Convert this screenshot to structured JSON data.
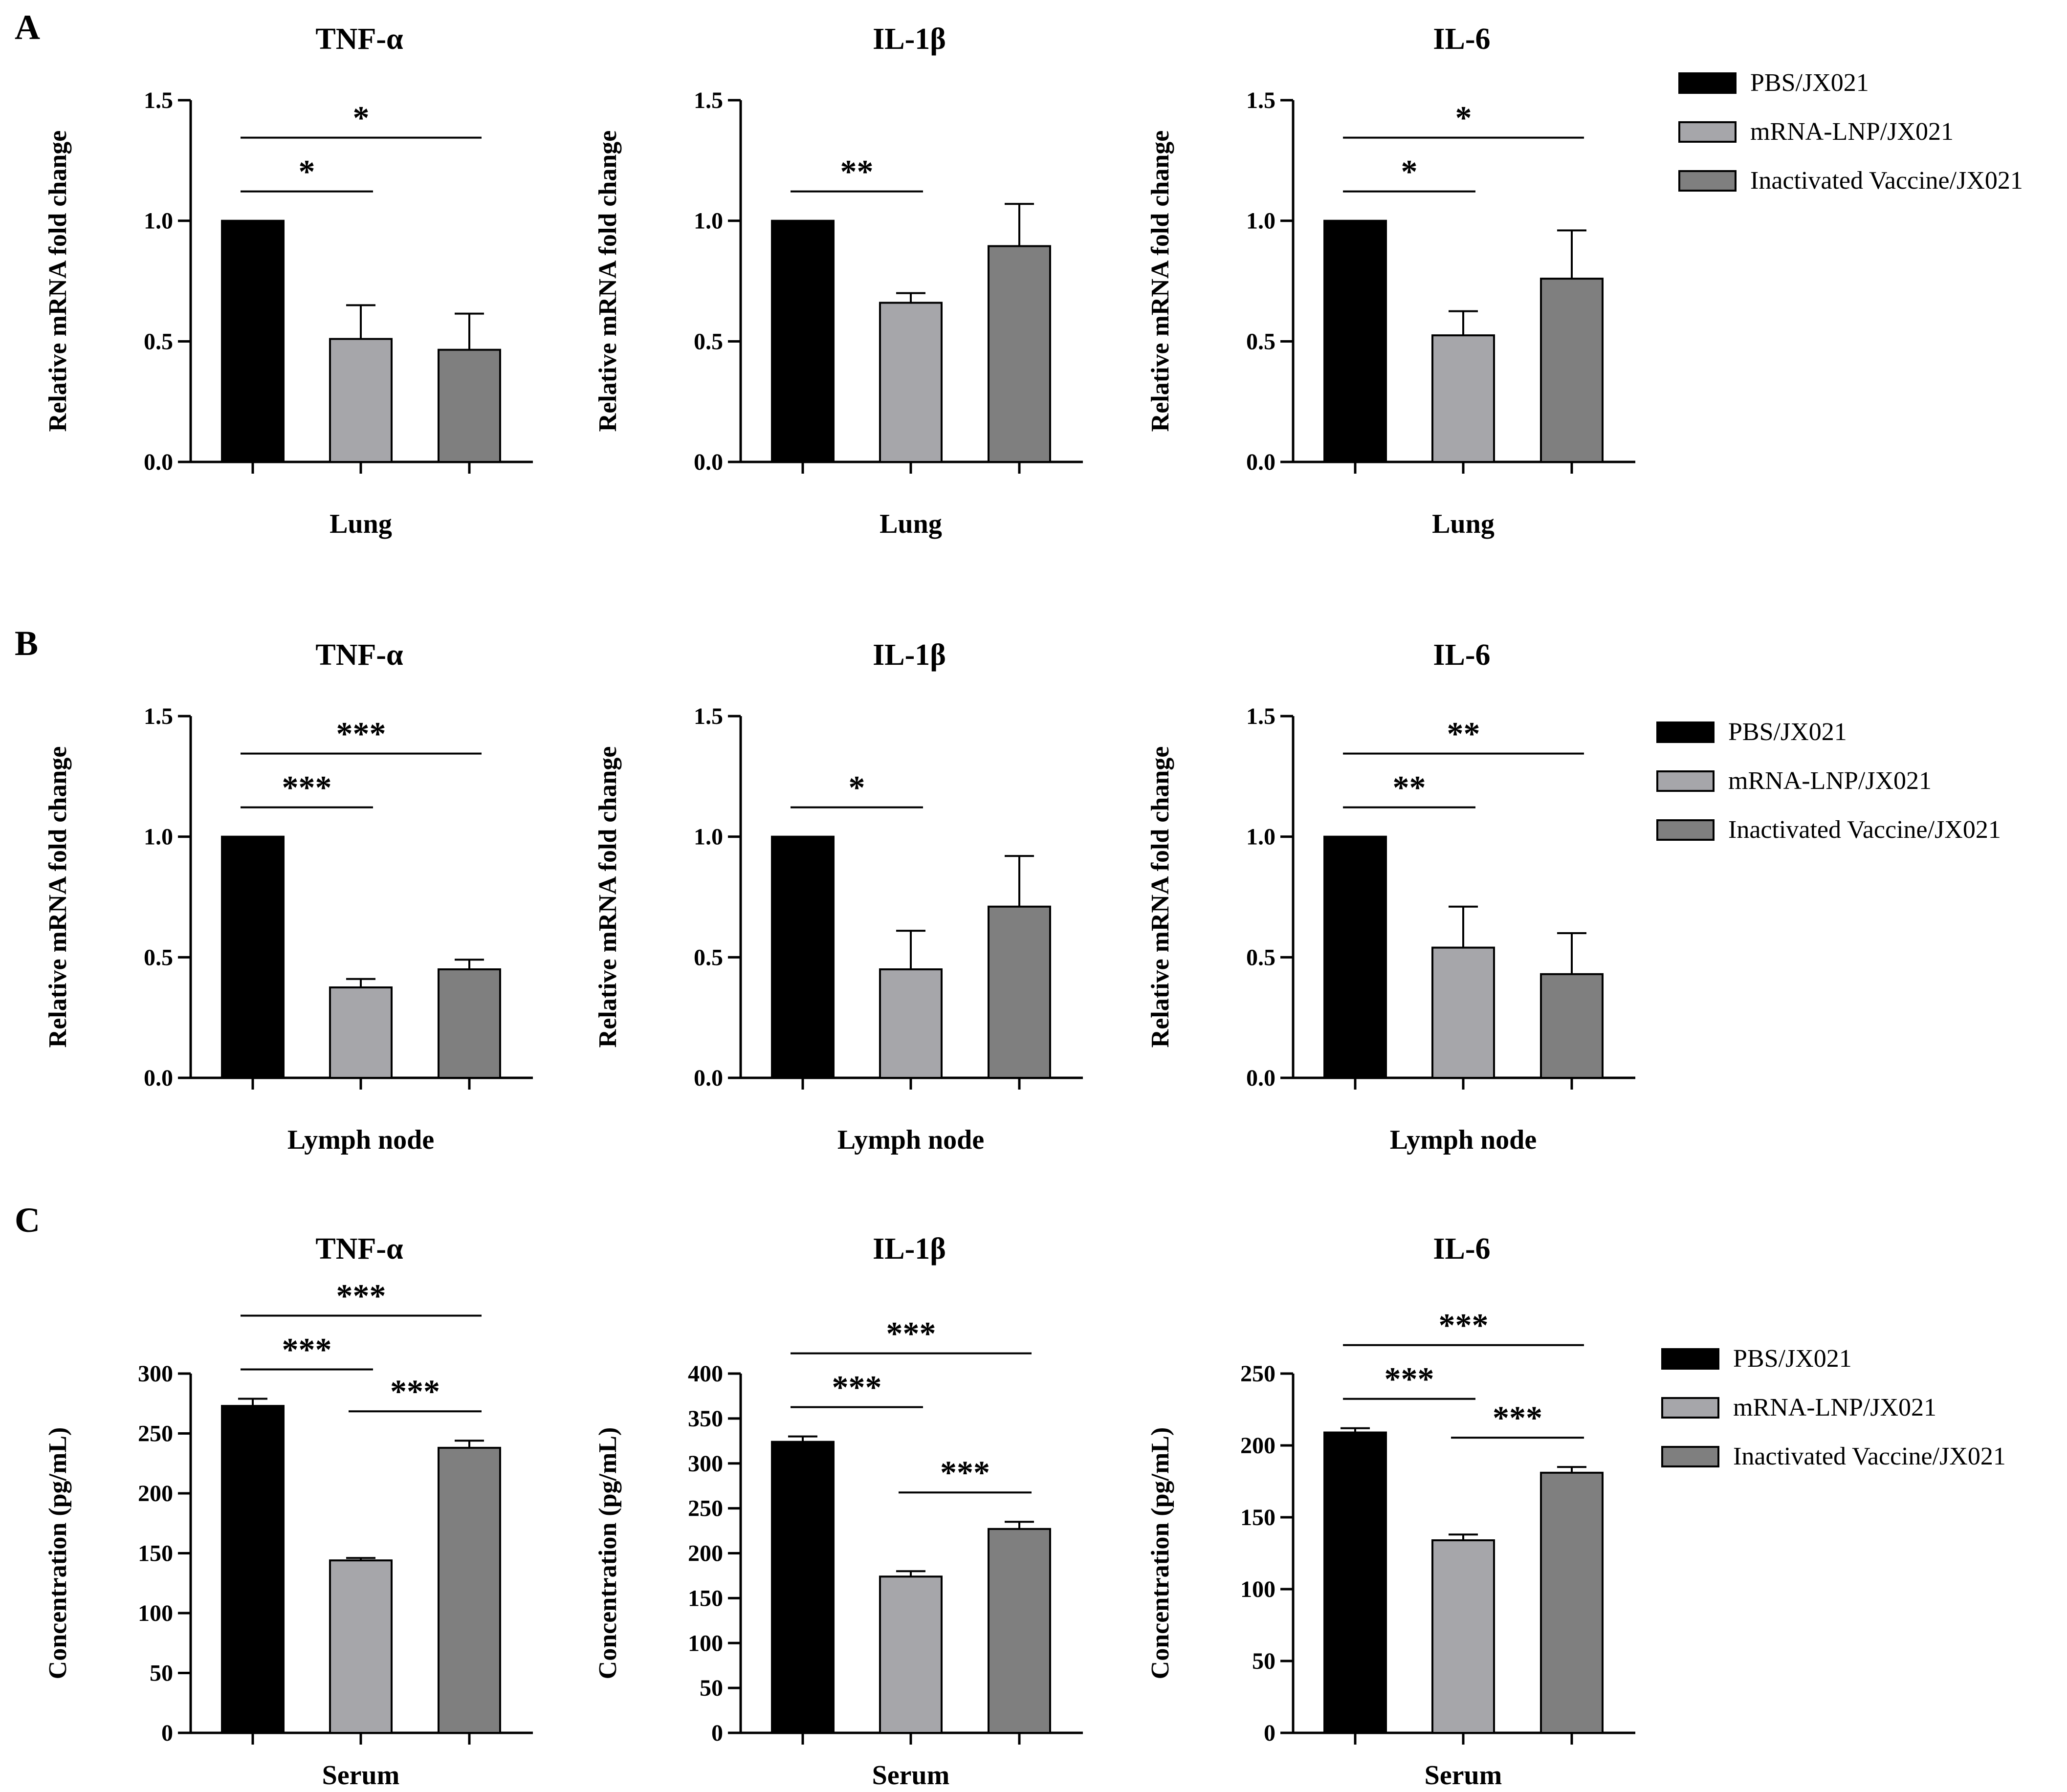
{
  "figure": {
    "panel_labels": [
      "A",
      "B",
      "C"
    ],
    "group_names": [
      "PBS/JX021",
      "mRNA-LNP/JX021",
      "Inactivated Vaccine/JX021"
    ],
    "group_colors": [
      "#000000",
      "#a6a6aa",
      "#7f7f7f"
    ]
  },
  "chart_data": [
    {
      "type": "bar",
      "panel": "A",
      "title": "TNF-α",
      "xlabel": "Lung",
      "ylabel": "Relative mRNA fold change",
      "ylim": [
        0,
        1.5
      ],
      "yticks": [
        "0.0",
        "0.5",
        "1.0",
        "1.5"
      ],
      "values": [
        1.0,
        0.51,
        0.465
      ],
      "errors": [
        0,
        0.14,
        0.15
      ],
      "significance": [
        {
          "from": 0,
          "to": 1,
          "label": "*"
        },
        {
          "from": 0,
          "to": 2,
          "label": "*"
        }
      ]
    },
    {
      "type": "bar",
      "panel": "A",
      "title": "IL-1β",
      "xlabel": "Lung",
      "ylabel": "Relative mRNA fold change",
      "ylim": [
        0,
        1.5
      ],
      "yticks": [
        "0.0",
        "0.5",
        "1.0",
        "1.5"
      ],
      "values": [
        1.0,
        0.66,
        0.895
      ],
      "errors": [
        0,
        0.04,
        0.175
      ],
      "significance": [
        {
          "from": 0,
          "to": 1,
          "label": "**"
        }
      ]
    },
    {
      "type": "bar",
      "panel": "A",
      "title": "IL-6",
      "xlabel": "Lung",
      "ylabel": "Relative mRNA fold change",
      "ylim": [
        0,
        1.5
      ],
      "yticks": [
        "0.0",
        "0.5",
        "1.0",
        "1.5"
      ],
      "values": [
        1.0,
        0.525,
        0.76
      ],
      "errors": [
        0,
        0.1,
        0.2
      ],
      "significance": [
        {
          "from": 0,
          "to": 1,
          "label": "*"
        },
        {
          "from": 0,
          "to": 2,
          "label": "*"
        }
      ]
    },
    {
      "type": "bar",
      "panel": "B",
      "title": "TNF-α",
      "xlabel": "Lymph node",
      "ylabel": "Relative mRNA fold change",
      "ylim": [
        0,
        1.5
      ],
      "yticks": [
        "0.0",
        "0.5",
        "1.0",
        "1.5"
      ],
      "values": [
        1.0,
        0.375,
        0.45
      ],
      "errors": [
        0,
        0.035,
        0.04
      ],
      "significance": [
        {
          "from": 0,
          "to": 1,
          "label": "***"
        },
        {
          "from": 0,
          "to": 2,
          "label": "***"
        }
      ]
    },
    {
      "type": "bar",
      "panel": "B",
      "title": "IL-1β",
      "xlabel": "Lymph node",
      "ylabel": "Relative mRNA fold change",
      "ylim": [
        0,
        1.5
      ],
      "yticks": [
        "0.0",
        "0.5",
        "1.0",
        "1.5"
      ],
      "values": [
        1.0,
        0.45,
        0.71
      ],
      "errors": [
        0,
        0.16,
        0.21
      ],
      "significance": [
        {
          "from": 0,
          "to": 1,
          "label": "*"
        }
      ]
    },
    {
      "type": "bar",
      "panel": "B",
      "title": "IL-6",
      "xlabel": "Lymph node",
      "ylabel": "Relative mRNA fold change",
      "ylim": [
        0,
        1.5
      ],
      "yticks": [
        "0.0",
        "0.5",
        "1.0",
        "1.5"
      ],
      "values": [
        1.0,
        0.54,
        0.43
      ],
      "errors": [
        0,
        0.17,
        0.17
      ],
      "significance": [
        {
          "from": 0,
          "to": 1,
          "label": "**"
        },
        {
          "from": 0,
          "to": 2,
          "label": "**"
        }
      ]
    },
    {
      "type": "bar",
      "panel": "C",
      "title": "TNF-α",
      "xlabel": "Serum",
      "ylabel": "Concentration (pg/mL)",
      "ylim": [
        0,
        300
      ],
      "yticks": [
        "0",
        "50",
        "100",
        "150",
        "200",
        "250",
        "300"
      ],
      "values": [
        273,
        144,
        238
      ],
      "errors": [
        6,
        2,
        6
      ],
      "significance": [
        {
          "from": 0,
          "to": 1,
          "label": "***"
        },
        {
          "from": 0,
          "to": 2,
          "label": "***"
        },
        {
          "from": 1,
          "to": 2,
          "label": "***"
        }
      ]
    },
    {
      "type": "bar",
      "panel": "C",
      "title": "IL-1β",
      "xlabel": "Serum",
      "ylabel": "Concentration (pg/mL)",
      "ylim": [
        0,
        400
      ],
      "yticks": [
        "0",
        "50",
        "100",
        "150",
        "200",
        "250",
        "300",
        "350",
        "400"
      ],
      "values": [
        324,
        174,
        227
      ],
      "errors": [
        6,
        6,
        8
      ],
      "significance": [
        {
          "from": 0,
          "to": 1,
          "label": "***"
        },
        {
          "from": 0,
          "to": 2,
          "label": "***"
        },
        {
          "from": 1,
          "to": 2,
          "label": "***"
        }
      ]
    },
    {
      "type": "bar",
      "panel": "C",
      "title": "IL-6",
      "xlabel": "Serum",
      "ylabel": "Concentration (pg/mL)",
      "ylim": [
        0,
        250
      ],
      "yticks": [
        "0",
        "50",
        "100",
        "150",
        "200",
        "250"
      ],
      "values": [
        209,
        134,
        181
      ],
      "errors": [
        3,
        4,
        4
      ],
      "significance": [
        {
          "from": 0,
          "to": 1,
          "label": "***"
        },
        {
          "from": 0,
          "to": 2,
          "label": "***"
        },
        {
          "from": 1,
          "to": 2,
          "label": "***"
        }
      ]
    }
  ]
}
